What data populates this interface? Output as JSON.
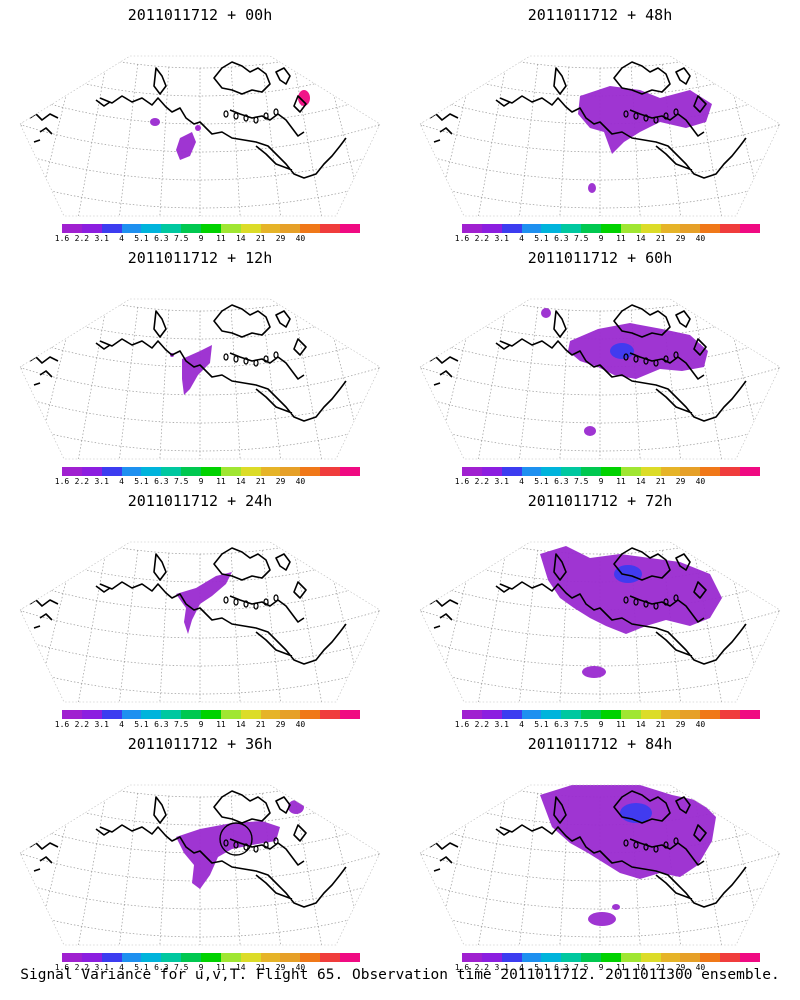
{
  "chart_data": {
    "type": "heatmap",
    "footer": "Signal Variance for u,v,T. Flight 65. Observation time 2011011712. 2011011300 ensemble.",
    "colorbar": {
      "colors": [
        "#a020d0",
        "#8c1ee0",
        "#3c3cf0",
        "#1e90f0",
        "#00b4dc",
        "#00c8a0",
        "#00c850",
        "#00d200",
        "#a0e632",
        "#dcdc28",
        "#e6b428",
        "#e6a028",
        "#f07818",
        "#f03c3c",
        "#f00a82"
      ],
      "tick_labels": [
        "1.6",
        "2.2",
        "3.1",
        "4",
        "5.1",
        "6.3",
        "7.5",
        "9",
        "11",
        "14",
        "21",
        "29",
        "40"
      ]
    },
    "panels": [
      {
        "title": "2011011712 + 00h",
        "lead_hours": 0
      },
      {
        "title": "2011011712 + 48h",
        "lead_hours": 48
      },
      {
        "title": "2011011712 + 12h",
        "lead_hours": 12
      },
      {
        "title": "2011011712 + 60h",
        "lead_hours": 60
      },
      {
        "title": "2011011712 + 24h",
        "lead_hours": 24
      },
      {
        "title": "2011011712 + 72h",
        "lead_hours": 72
      },
      {
        "title": "2011011712 + 36h",
        "lead_hours": 36
      },
      {
        "title": "2011011712 + 84h",
        "lead_hours": 84
      }
    ]
  }
}
